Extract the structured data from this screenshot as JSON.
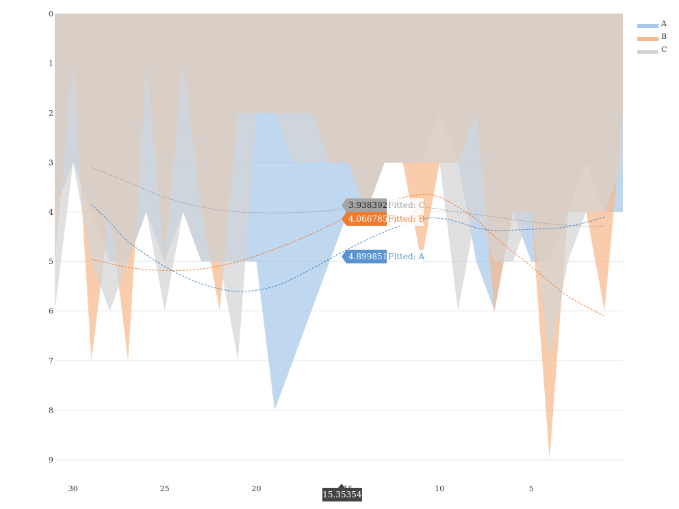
{
  "chart_data": {
    "type": "area",
    "x": [
      31,
      30,
      29,
      28,
      27,
      26,
      25,
      24,
      23,
      22,
      21,
      20,
      19,
      18,
      17,
      16,
      15,
      14,
      13,
      12,
      11,
      10,
      9,
      8,
      7,
      6,
      5,
      4,
      3,
      2,
      1,
      0
    ],
    "x_axis": {
      "min": 0,
      "max": 30,
      "reversed": true,
      "extends_right_to": 1,
      "ticks": [
        30,
        25,
        20,
        15,
        10,
        5
      ]
    },
    "y_axis": {
      "min": 0,
      "max": 9,
      "reversed": true,
      "ticks": [
        0,
        1,
        2,
        3,
        4,
        5,
        6,
        7,
        8,
        9
      ]
    },
    "grid": true,
    "legend_position": "top-right",
    "series": [
      {
        "name": "A",
        "color": "#a8c8ea",
        "values": [
          4,
          3,
          4,
          5,
          5,
          4,
          5,
          4,
          5,
          5,
          5,
          5,
          8,
          7,
          6,
          5,
          4,
          4,
          3,
          3,
          3,
          2,
          3,
          5,
          6,
          4,
          5,
          5,
          4,
          3,
          4,
          4
        ]
      },
      {
        "name": "B",
        "color": "#f7b98a",
        "values": [
          5,
          1,
          7,
          4,
          7,
          1,
          5,
          1,
          4,
          6,
          2,
          2,
          2,
          2,
          2,
          3,
          3,
          4,
          3,
          3,
          5,
          3,
          3,
          2,
          6,
          4,
          4,
          9,
          4,
          4,
          6,
          2
        ]
      },
      {
        "name": "C",
        "color": "#d4d4d4",
        "values": [
          6,
          3,
          5,
          6,
          5,
          4,
          6,
          4,
          5,
          5,
          7,
          2,
          2,
          3,
          3,
          3,
          3,
          4,
          3,
          3,
          3,
          3,
          6,
          4,
          5,
          5,
          4,
          7,
          5,
          4,
          4,
          3
        ]
      }
    ],
    "fitted_curves": [
      {
        "series": "A",
        "color": "#4a86c5",
        "points": [
          [
            29,
            3.85
          ],
          [
            28,
            4.2
          ],
          [
            27,
            4.6
          ],
          [
            25,
            5.1
          ],
          [
            23,
            5.45
          ],
          [
            21,
            5.6
          ],
          [
            19,
            5.5
          ],
          [
            17,
            5.15
          ],
          [
            15,
            4.75
          ],
          [
            13,
            4.4
          ],
          [
            11,
            4.15
          ],
          [
            10,
            4.13
          ],
          [
            9,
            4.2
          ],
          [
            8,
            4.32
          ],
          [
            7,
            4.37
          ],
          [
            5,
            4.35
          ],
          [
            3,
            4.3
          ],
          [
            1,
            4.1
          ]
        ]
      },
      {
        "series": "B",
        "color": "#ee7b2e",
        "points": [
          [
            29,
            4.95
          ],
          [
            27,
            5.12
          ],
          [
            25,
            5.18
          ],
          [
            23,
            5.15
          ],
          [
            21,
            5.0
          ],
          [
            19,
            4.75
          ],
          [
            17,
            4.45
          ],
          [
            15,
            4.1
          ],
          [
            13,
            3.8
          ],
          [
            11,
            3.65
          ],
          [
            10,
            3.7
          ],
          [
            9,
            3.9
          ],
          [
            8,
            4.15
          ],
          [
            7,
            4.5
          ],
          [
            5,
            5.1
          ],
          [
            3,
            5.7
          ],
          [
            1,
            6.1
          ]
        ]
      },
      {
        "series": "C",
        "color": "#a4a4a4",
        "points": [
          [
            29,
            3.1
          ],
          [
            27,
            3.4
          ],
          [
            25,
            3.7
          ],
          [
            23,
            3.9
          ],
          [
            21,
            4.0
          ],
          [
            19,
            4.02
          ],
          [
            17,
            4.0
          ],
          [
            15,
            3.93
          ],
          [
            13,
            3.88
          ],
          [
            11,
            3.9
          ],
          [
            9,
            4.0
          ],
          [
            7,
            4.1
          ],
          [
            5,
            4.2
          ],
          [
            3,
            4.27
          ],
          [
            1,
            4.3
          ]
        ]
      }
    ],
    "tooltips": [
      {
        "value": "3.938392",
        "label": "Fitted: C",
        "color": "#a4a4a4"
      },
      {
        "value": "4.066785",
        "label": "Fitted: B",
        "color": "#ee7b2e"
      },
      {
        "value": "4.899851",
        "label": "Fitted: A",
        "color": "#5a93cf"
      }
    ],
    "crosshair": {
      "x": 15.35354,
      "label": "15.35354"
    }
  }
}
